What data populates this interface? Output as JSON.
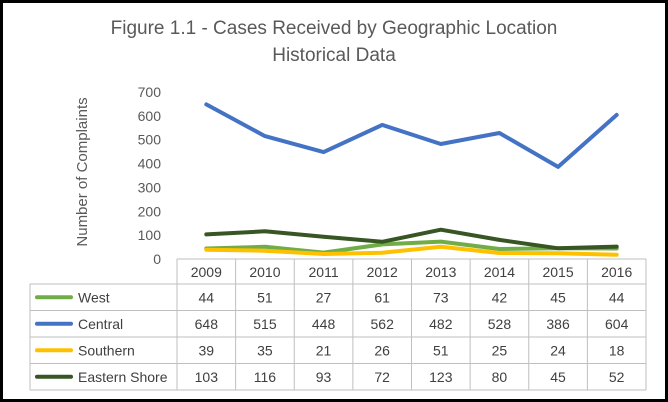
{
  "chart_data": {
    "type": "line",
    "title": "Figure 1.1 - Cases Received by Geographic Location",
    "subtitle": "Historical Data",
    "ylabel": "Number of Complaints",
    "xlabel": "",
    "categories": [
      "2009",
      "2010",
      "2011",
      "2012",
      "2013",
      "2014",
      "2015",
      "2016"
    ],
    "ylim": [
      0,
      700
    ],
    "yticks": [
      0,
      100,
      200,
      300,
      400,
      500,
      600,
      700
    ],
    "grid": false,
    "legend": "data-table-left",
    "series": [
      {
        "name": "West",
        "color": "#70ad47",
        "values": [
          44,
          51,
          27,
          61,
          73,
          42,
          45,
          44
        ]
      },
      {
        "name": "Central",
        "color": "#4472c4",
        "values": [
          648,
          515,
          448,
          562,
          482,
          528,
          386,
          604
        ]
      },
      {
        "name": "Southern",
        "color": "#ffc000",
        "values": [
          39,
          35,
          21,
          26,
          51,
          25,
          24,
          18
        ]
      },
      {
        "name": "Eastern Shore",
        "color": "#375623",
        "values": [
          103,
          116,
          93,
          72,
          123,
          80,
          45,
          52
        ]
      }
    ]
  }
}
